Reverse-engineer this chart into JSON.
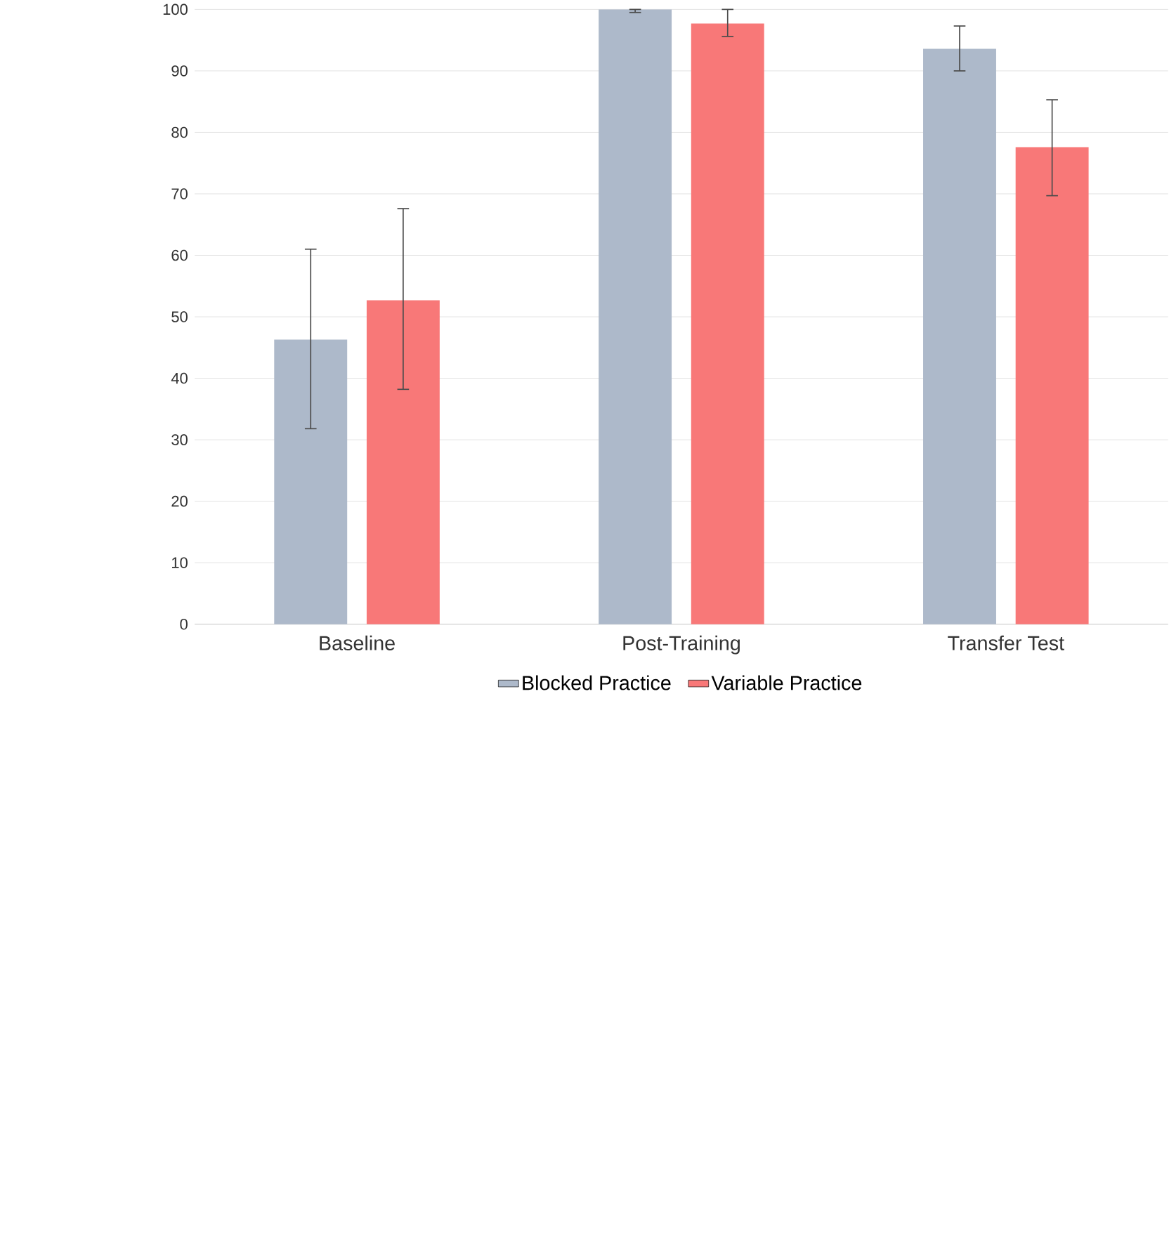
{
  "chart_data": {
    "type": "bar",
    "categories": [
      "Baseline",
      "Post-Training",
      "Transfer Test"
    ],
    "series": [
      {
        "name": "Blocked Practice",
        "color": "#adb9ca",
        "values": [
          46.3,
          100,
          93.6
        ],
        "errors": [
          [
            31.8,
            61.0
          ],
          [
            99.5,
            100
          ],
          [
            90.0,
            97.3
          ]
        ]
      },
      {
        "name": "Variable Practice",
        "color": "#f87878",
        "values": [
          52.7,
          97.7,
          77.6
        ],
        "errors": [
          [
            38.2,
            67.6
          ],
          [
            95.6,
            100
          ],
          [
            69.7,
            85.3
          ]
        ]
      }
    ],
    "ylim": [
      0,
      100
    ],
    "yticks": [
      0,
      10,
      20,
      30,
      40,
      50,
      60,
      70,
      80,
      90,
      100
    ],
    "grid": "y",
    "legend": "bottom"
  }
}
